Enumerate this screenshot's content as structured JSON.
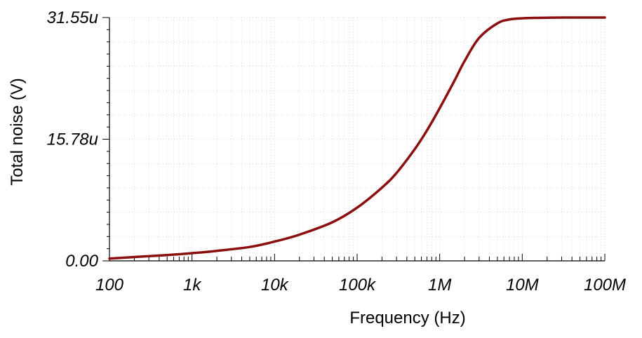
{
  "chart_data": {
    "type": "line",
    "title": "",
    "xlabel": "Frequency (Hz)",
    "ylabel": "Total noise (V)",
    "x_scale": "log",
    "xlim": [
      100,
      100000000
    ],
    "ylim": [
      0,
      31.55
    ],
    "y_unit_suffix": "u",
    "x_ticks": [
      {
        "value": 100,
        "label": "100"
      },
      {
        "value": 1000,
        "label": "1k"
      },
      {
        "value": 10000,
        "label": "10k"
      },
      {
        "value": 100000,
        "label": "100k"
      },
      {
        "value": 1000000,
        "label": "1M"
      },
      {
        "value": 10000000,
        "label": "10M"
      },
      {
        "value": 100000000,
        "label": "100M"
      }
    ],
    "y_ticks": [
      {
        "value": 0,
        "label": "0.00"
      },
      {
        "value": 15.78,
        "label": "15.78u"
      },
      {
        "value": 31.55,
        "label": "31.55u"
      }
    ],
    "grid": true,
    "color": "#8b0f0f",
    "series": [
      {
        "x": [
          100,
          200,
          500,
          1000,
          2000,
          5000,
          10000,
          20000,
          50000,
          100000,
          200000,
          300000,
          500000,
          700000,
          1000000,
          1500000,
          2000000,
          3000000,
          5000000,
          7000000,
          10000000,
          20000000,
          50000000,
          100000000
        ],
        "y": [
          0.3,
          0.5,
          0.75,
          1.0,
          1.3,
          1.8,
          2.5,
          3.4,
          5.0,
          6.9,
          9.5,
          11.4,
          14.5,
          16.9,
          19.8,
          23.3,
          25.9,
          28.9,
          30.8,
          31.3,
          31.45,
          31.53,
          31.55,
          31.55
        ]
      }
    ]
  }
}
